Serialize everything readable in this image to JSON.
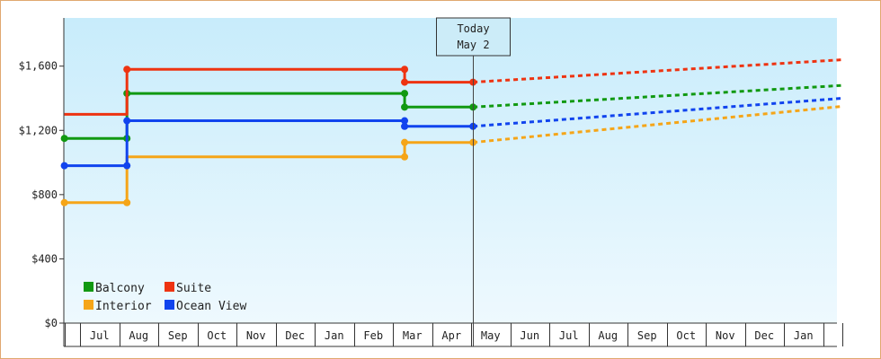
{
  "chart_data": {
    "type": "line",
    "title": "",
    "xlabel": "",
    "ylabel": "",
    "ylim": [
      0,
      1900
    ],
    "y_ticks": [
      0,
      400,
      800,
      1200,
      1600
    ],
    "y_tick_labels": [
      "$0",
      "$400",
      "$800",
      "$1,200",
      "$1,600"
    ],
    "x_range": [
      0,
      19.5
    ],
    "months": [
      {
        "label": "Jul",
        "x": 0.5
      },
      {
        "label": "Aug",
        "x": 1.5
      },
      {
        "label": "Sep",
        "x": 2.5
      },
      {
        "label": "Oct",
        "x": 3.5
      },
      {
        "label": "Nov",
        "x": 4.5
      },
      {
        "label": "Dec",
        "x": 5.5
      },
      {
        "label": "Jan",
        "x": 6.5
      },
      {
        "label": "Feb",
        "x": 7.5
      },
      {
        "label": "Mar",
        "x": 8.5
      },
      {
        "label": "Apr",
        "x": 9.5
      },
      {
        "label": "May",
        "x": 10.5
      },
      {
        "label": "Jun",
        "x": 11.5
      },
      {
        "label": "Jul",
        "x": 12.5
      },
      {
        "label": "Aug",
        "x": 13.5
      },
      {
        "label": "Sep",
        "x": 14.5
      },
      {
        "label": "Oct",
        "x": 15.5
      },
      {
        "label": "Nov",
        "x": 16.5
      },
      {
        "label": "Dec",
        "x": 17.5
      },
      {
        "label": "Jan",
        "x": 18.5
      }
    ],
    "month_boundaries": [
      -0.4,
      0,
      1,
      2,
      3,
      4,
      5,
      6,
      7,
      8,
      9,
      10,
      11,
      12,
      13,
      14,
      15,
      16,
      17,
      18,
      19,
      19.5
    ],
    "today": {
      "line1": "Today",
      "line2": "May 2",
      "x": 10.05
    },
    "legend_position": "bottom-left",
    "series": [
      {
        "name": "Balcony",
        "color": "#119911",
        "points": [
          [
            -0.4,
            1150
          ],
          [
            1.2,
            1150
          ],
          [
            1.2,
            1430
          ],
          [
            8.3,
            1430
          ],
          [
            8.3,
            1345
          ],
          [
            10.05,
            1345
          ]
        ],
        "markers": [
          [
            -0.4,
            1150
          ],
          [
            1.2,
            1150
          ],
          [
            1.2,
            1430
          ],
          [
            8.3,
            1430
          ],
          [
            8.3,
            1345
          ],
          [
            10.05,
            1345
          ]
        ],
        "forecast": [
          [
            10.05,
            1345
          ],
          [
            19.5,
            1480
          ]
        ]
      },
      {
        "name": "Suite",
        "color": "#ee3311",
        "points": [
          [
            -0.4,
            1300
          ],
          [
            1.2,
            1300
          ],
          [
            1.2,
            1580
          ],
          [
            8.3,
            1580
          ],
          [
            8.3,
            1500
          ],
          [
            10.05,
            1500
          ]
        ],
        "markers": [
          [
            1.2,
            1580
          ],
          [
            8.3,
            1580
          ],
          [
            8.3,
            1500
          ],
          [
            10.05,
            1500
          ]
        ],
        "forecast": [
          [
            10.05,
            1500
          ],
          [
            19.5,
            1640
          ]
        ]
      },
      {
        "name": "Interior",
        "color": "#f5a518",
        "points": [
          [
            -0.4,
            750
          ],
          [
            1.2,
            750
          ],
          [
            1.2,
            1035
          ],
          [
            8.3,
            1035
          ],
          [
            8.3,
            1125
          ],
          [
            10.05,
            1125
          ]
        ],
        "markers": [
          [
            -0.4,
            750
          ],
          [
            1.2,
            750
          ],
          [
            8.3,
            1035
          ],
          [
            8.3,
            1125
          ],
          [
            10.05,
            1125
          ]
        ],
        "forecast": [
          [
            10.05,
            1125
          ],
          [
            19.5,
            1350
          ]
        ]
      },
      {
        "name": "Ocean View",
        "color": "#1144ee",
        "points": [
          [
            -0.4,
            980
          ],
          [
            1.2,
            980
          ],
          [
            1.2,
            1260
          ],
          [
            8.3,
            1260
          ],
          [
            8.3,
            1225
          ],
          [
            10.05,
            1225
          ]
        ],
        "markers": [
          [
            -0.4,
            980
          ],
          [
            1.2,
            980
          ],
          [
            1.2,
            1260
          ],
          [
            8.3,
            1260
          ],
          [
            8.3,
            1225
          ],
          [
            10.05,
            1225
          ]
        ],
        "forecast": [
          [
            10.05,
            1225
          ],
          [
            19.5,
            1400
          ]
        ]
      }
    ]
  }
}
